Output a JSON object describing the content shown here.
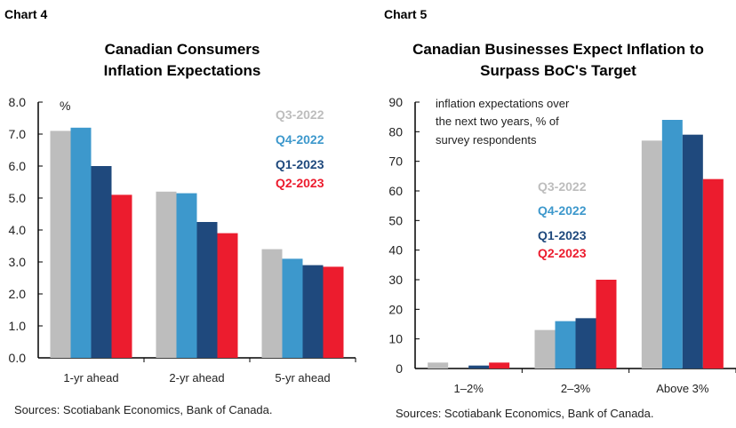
{
  "colors": {
    "Q3-2022": "#bdbdbd",
    "Q4-2022": "#3d98cc",
    "Q1-2023": "#1f497d",
    "Q2-2023": "#ec1c2e"
  },
  "chart_data": [
    {
      "type": "bar",
      "label": "Chart 4",
      "title": [
        "Canadian Consumers",
        "Inflation Expectations"
      ],
      "unit_label": "%",
      "categories": [
        "1-yr ahead",
        "2-yr ahead",
        "5-yr ahead"
      ],
      "yticks": [
        "0.0",
        "1.0",
        "2.0",
        "3.0",
        "4.0",
        "5.0",
        "6.0",
        "7.0",
        "8.0"
      ],
      "ylim": [
        0,
        8
      ],
      "legend_placement": "top-right",
      "series": [
        {
          "name": "Q3-2022",
          "values": [
            7.1,
            5.2,
            3.4
          ]
        },
        {
          "name": "Q4-2022",
          "values": [
            7.2,
            5.15,
            3.1
          ]
        },
        {
          "name": "Q1-2023",
          "values": [
            6.0,
            4.25,
            2.9
          ]
        },
        {
          "name": "Q2-2023",
          "values": [
            5.1,
            3.9,
            2.85
          ]
        }
      ],
      "source": "Sources: Scotiabank Economics, Bank of Canada."
    },
    {
      "type": "bar",
      "label": "Chart 5",
      "title": [
        "Canadian Businesses Expect Inflation to",
        "Surpass BoC's Target"
      ],
      "note": [
        "inflation expectations over",
        "the next two years, % of",
        "survey respondents"
      ],
      "categories": [
        "1–2%",
        "2–3%",
        "Above 3%"
      ],
      "yticks": [
        "0",
        "10",
        "20",
        "30",
        "40",
        "50",
        "60",
        "70",
        "80",
        "90"
      ],
      "ylim": [
        0,
        90
      ],
      "legend_placement": "center",
      "series": [
        {
          "name": "Q3-2022",
          "values": [
            2,
            13,
            77
          ]
        },
        {
          "name": "Q4-2022",
          "values": [
            0,
            16,
            84
          ]
        },
        {
          "name": "Q1-2023",
          "values": [
            1,
            17,
            79
          ]
        },
        {
          "name": "Q2-2023",
          "values": [
            2,
            30,
            64
          ]
        }
      ],
      "source": "Sources: Scotiabank Economics, Bank of Canada."
    }
  ]
}
